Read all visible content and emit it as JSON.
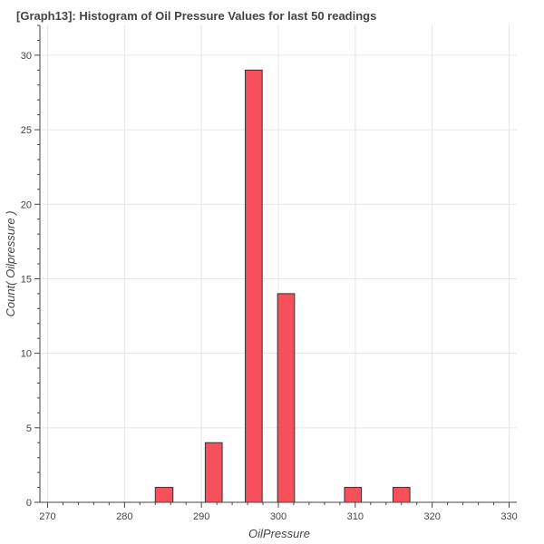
{
  "chart_data": {
    "type": "bar",
    "title": "[Graph13]: Histogram of Oil Pressure Values for last 50 readings",
    "xlabel": "OilPressure",
    "ylabel": "Count( Oilpressure )",
    "xlim": [
      269,
      331
    ],
    "ylim": [
      0,
      32
    ],
    "x_ticks": [
      270,
      280,
      290,
      300,
      310,
      320,
      330
    ],
    "y_ticks": [
      0,
      5,
      10,
      15,
      20,
      25,
      30
    ],
    "grid": true,
    "bars": [
      {
        "x0": 284.0,
        "x1": 286.3,
        "value": 1
      },
      {
        "x0": 290.5,
        "x1": 292.7,
        "value": 4
      },
      {
        "x0": 295.7,
        "x1": 297.9,
        "value": 29
      },
      {
        "x0": 299.9,
        "x1": 302.1,
        "value": 14
      },
      {
        "x0": 308.6,
        "x1": 310.8,
        "value": 1
      },
      {
        "x0": 314.9,
        "x1": 317.1,
        "value": 1
      }
    ],
    "colors": {
      "bar_fill": "#f5414e",
      "bar_stroke": "#333333",
      "grid": "#e5e5e5",
      "axis": "#444444"
    }
  }
}
